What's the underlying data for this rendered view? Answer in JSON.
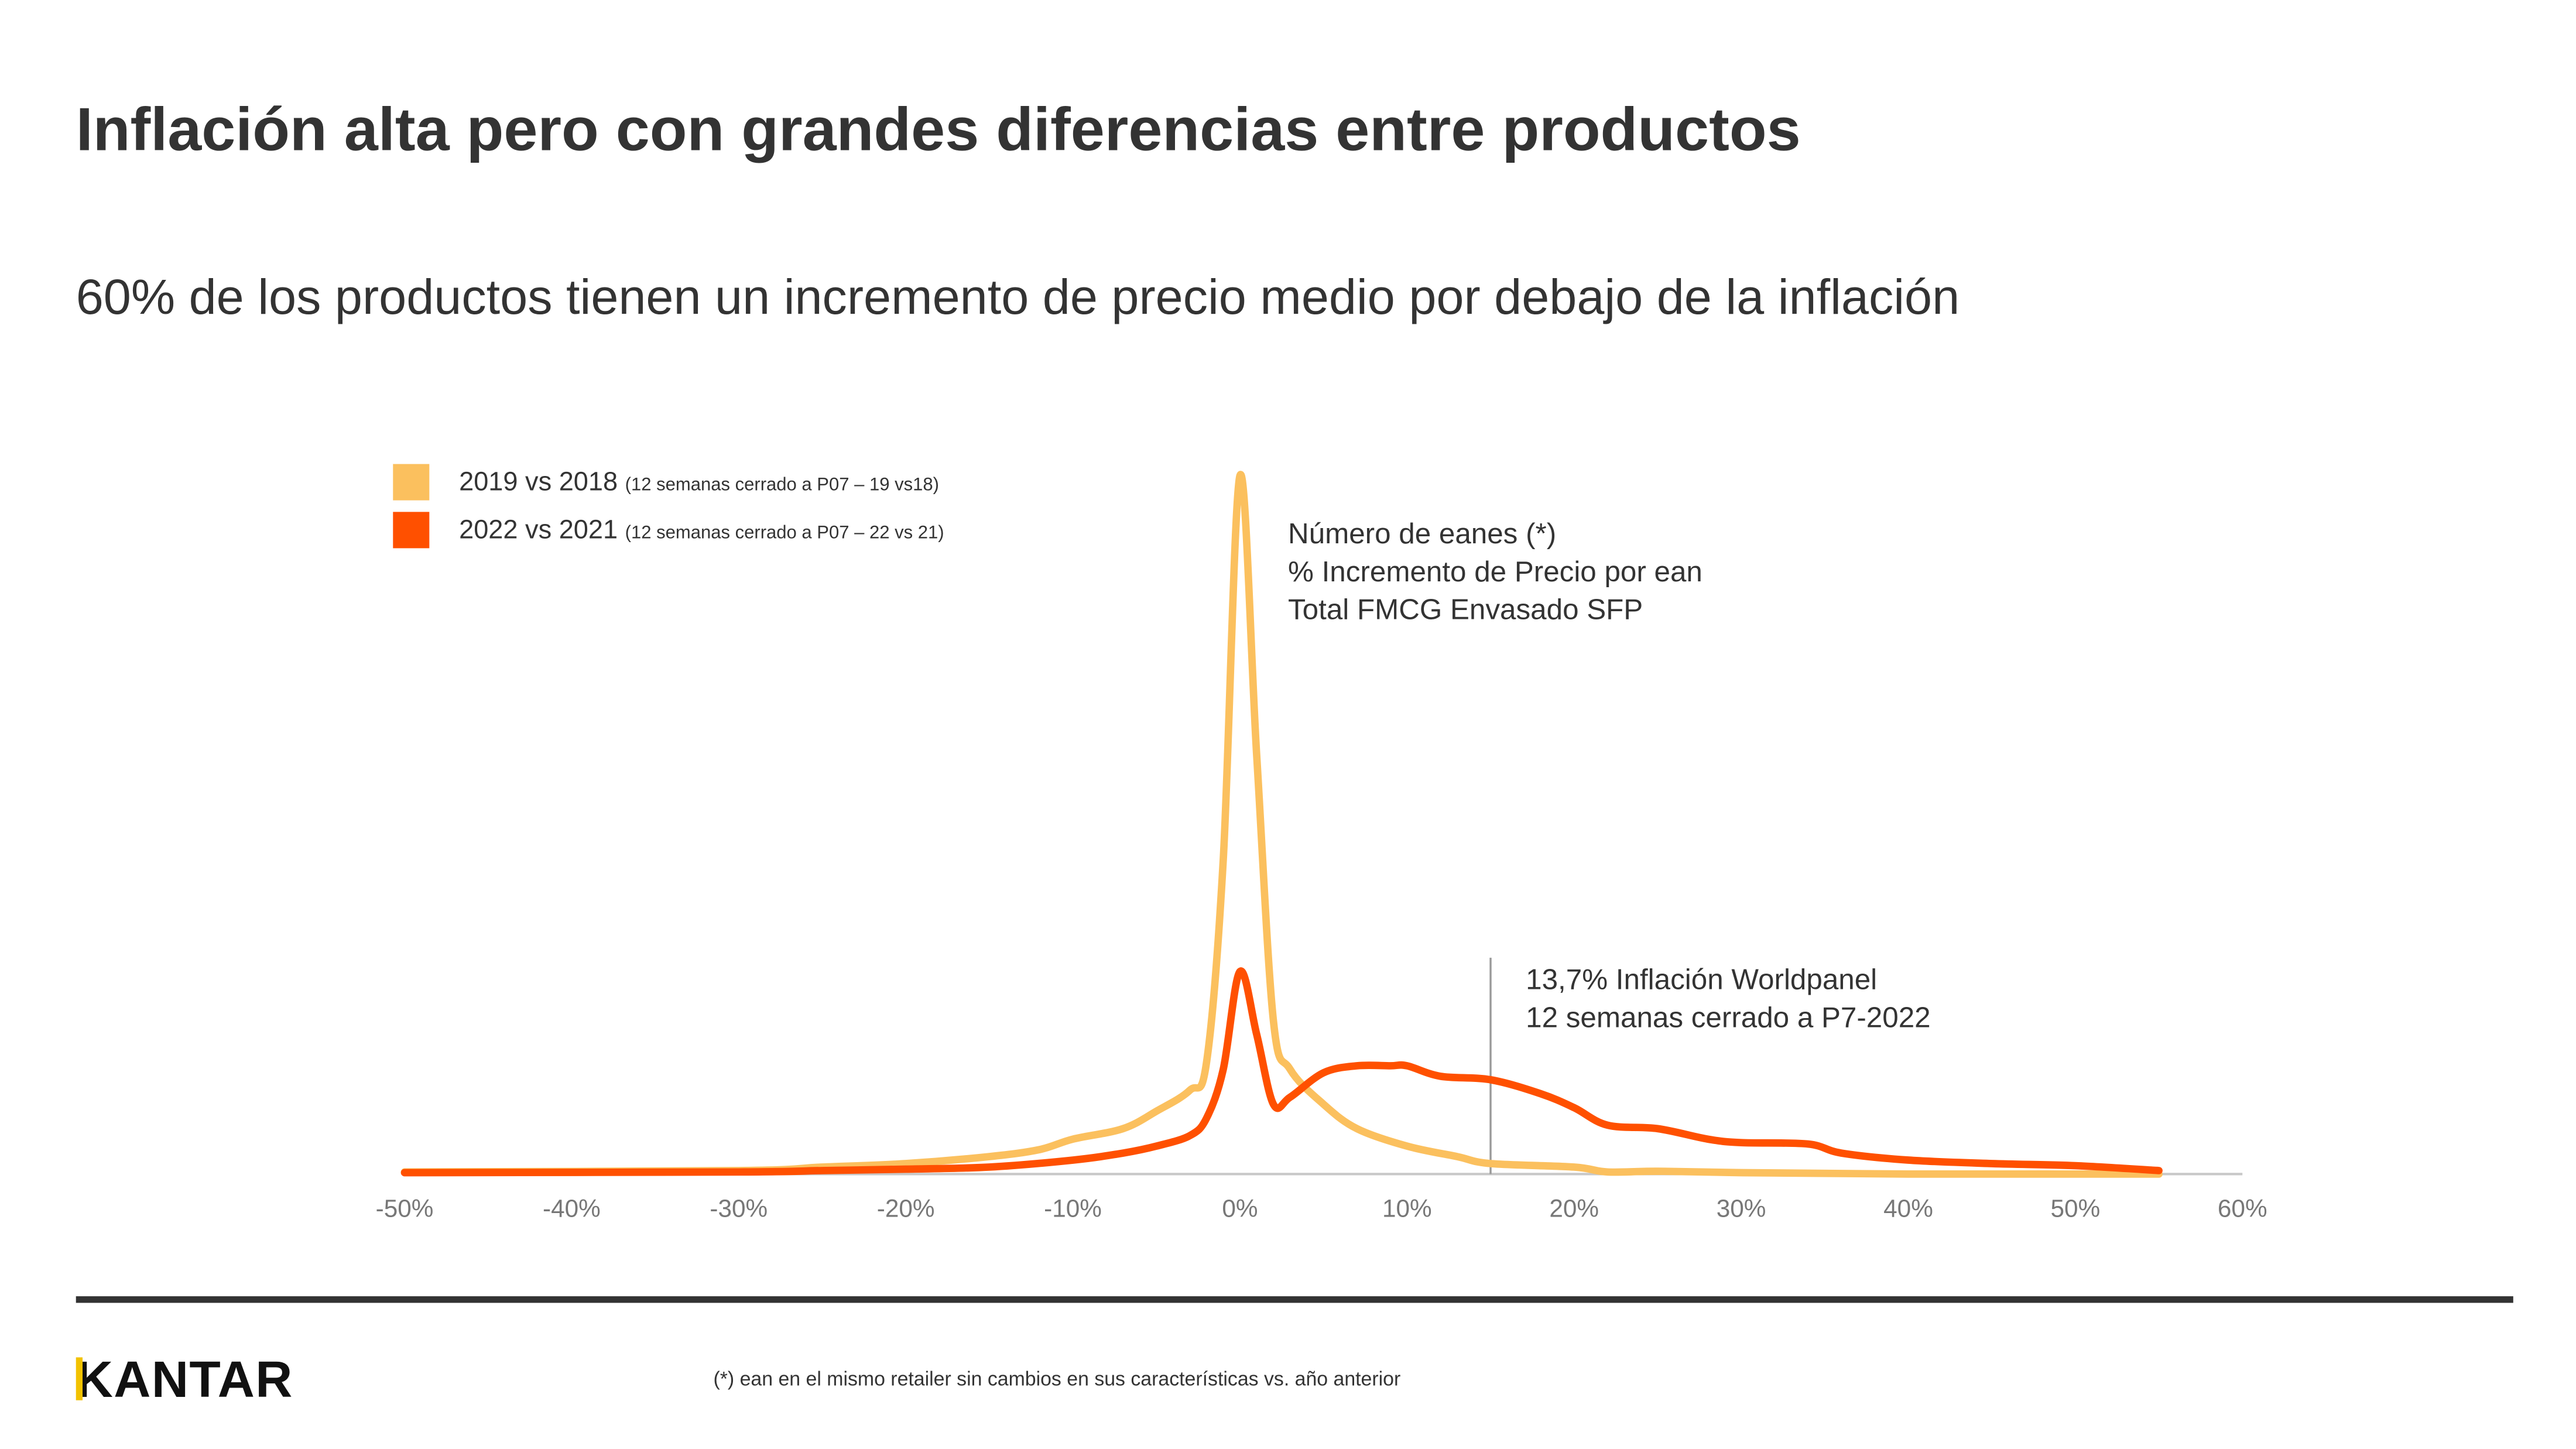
{
  "title": "Inflación alta pero con grandes diferencias entre productos",
  "subtitle": "60% de los productos tienen un incremento de precio medio por debajo de la inflación",
  "legend": [
    {
      "label": "2019 vs 2018",
      "note": "(12 semanas cerrado a P07 – 19 vs18)",
      "color": "#FBC05E"
    },
    {
      "label": "2022 vs 2021",
      "note": "(12 semanas cerrado a P07 – 22 vs 21)",
      "color": "#FF5000"
    }
  ],
  "annotation": {
    "line1": "Número de eanes (*)",
    "line2": "% Incremento de Precio por ean",
    "line3": "Total FMCG Envasado SFP"
  },
  "inflation_note": {
    "line1": "13,7% Inflación Worldpanel",
    "line2": "12 semanas cerrado a P7-2022"
  },
  "footnote": "(*) ean en el mismo retailer sin cambios en sus características vs. año anterior",
  "logo": "KANTAR",
  "chart_data": {
    "type": "line",
    "xlabel": "",
    "ylabel": "",
    "xlim": [
      -50,
      60
    ],
    "x_ticks": [
      "-50%",
      "-40%",
      "-30%",
      "-20%",
      "-10%",
      "0%",
      "10%",
      "20%",
      "30%",
      "40%",
      "50%",
      "60%"
    ],
    "y_axis_shown": false,
    "grid": false,
    "legend_position": "top-left",
    "marker_x": 15,
    "series": [
      {
        "name": "2019 vs 2018",
        "color": "#FBC05E",
        "points": [
          [
            -50,
            0.3
          ],
          [
            -30,
            0.5
          ],
          [
            -25,
            1
          ],
          [
            -20,
            1.5
          ],
          [
            -15,
            2.5
          ],
          [
            -12,
            3.5
          ],
          [
            -10,
            5
          ],
          [
            -7,
            6.5
          ],
          [
            -5,
            9
          ],
          [
            -3,
            12
          ],
          [
            -2,
            16
          ],
          [
            -1,
            45
          ],
          [
            0,
            100
          ],
          [
            1,
            60
          ],
          [
            2,
            22
          ],
          [
            3,
            15
          ],
          [
            5,
            10
          ],
          [
            7,
            6.5
          ],
          [
            10,
            4
          ],
          [
            13,
            2.5
          ],
          [
            15,
            1.5
          ],
          [
            20,
            1
          ],
          [
            22,
            0.3
          ],
          [
            25,
            0.4
          ],
          [
            30,
            0.2
          ],
          [
            40,
            0
          ],
          [
            55,
            0
          ]
        ]
      },
      {
        "name": "2022 vs 2021",
        "color": "#FF5000",
        "points": [
          [
            -50,
            0.2
          ],
          [
            -30,
            0.3
          ],
          [
            -25,
            0.5
          ],
          [
            -20,
            0.7
          ],
          [
            -15,
            1
          ],
          [
            -10,
            2
          ],
          [
            -7,
            3
          ],
          [
            -5,
            4
          ],
          [
            -3,
            5.5
          ],
          [
            -2,
            8
          ],
          [
            -1,
            15
          ],
          [
            0,
            29
          ],
          [
            1,
            20
          ],
          [
            2,
            10
          ],
          [
            3,
            11
          ],
          [
            5,
            14.5
          ],
          [
            7,
            15.5
          ],
          [
            9,
            15.5
          ],
          [
            10,
            15.5
          ],
          [
            12,
            14
          ],
          [
            15,
            13.5
          ],
          [
            18,
            11.5
          ],
          [
            20,
            9.5
          ],
          [
            22,
            7
          ],
          [
            25,
            6.5
          ],
          [
            28,
            5
          ],
          [
            30,
            4.5
          ],
          [
            34,
            4.3
          ],
          [
            36,
            3
          ],
          [
            40,
            2
          ],
          [
            45,
            1.5
          ],
          [
            50,
            1.2
          ],
          [
            55,
            0.5
          ]
        ]
      }
    ]
  }
}
